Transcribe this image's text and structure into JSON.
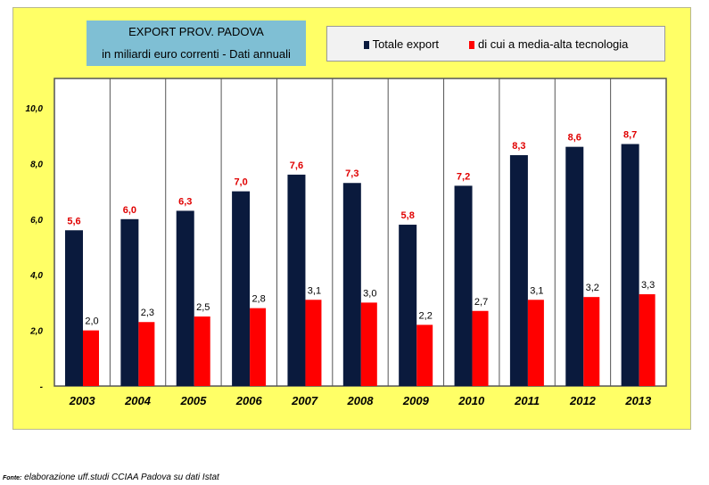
{
  "chart_data": {
    "type": "bar",
    "title": "EXPORT PROV. PADOVA",
    "subtitle": "in miliardi euro correnti - Dati annuali",
    "categories": [
      "2003",
      "2004",
      "2005",
      "2006",
      "2007",
      "2008",
      "2009",
      "2010",
      "2011",
      "2012",
      "2013"
    ],
    "series": [
      {
        "name": "Totale export",
        "color": "#0a1a3d",
        "values": [
          5.6,
          6.0,
          6.3,
          7.0,
          7.6,
          7.3,
          5.8,
          7.2,
          8.3,
          8.6,
          8.7
        ],
        "labels": [
          "5,6",
          "6,0",
          "6,3",
          "7,0",
          "7,6",
          "7,3",
          "5,8",
          "7,2",
          "8,3",
          "8,6",
          "8,7"
        ]
      },
      {
        "name": "di cui a media-alta tecnologia",
        "color": "#ff0000",
        "values": [
          2.0,
          2.3,
          2.5,
          2.8,
          3.1,
          3.0,
          2.2,
          2.7,
          3.1,
          3.2,
          3.3
        ],
        "labels": [
          "2,0",
          "2,3",
          "2,5",
          "2,8",
          "3,1",
          "3,0",
          "2,2",
          "2,7",
          "3,1",
          "3,2",
          "3,3"
        ]
      }
    ],
    "ylim": [
      0,
      10
    ],
    "yticks": [
      "-",
      "2,0",
      "4,0",
      "6,0",
      "8,0",
      "10,0"
    ],
    "legend_position": "top-right",
    "grid": "vertical category separators"
  },
  "source": {
    "prefix": "Fonte:",
    "text": "elaborazione uff.studi CCIAA Padova su dati Istat"
  }
}
